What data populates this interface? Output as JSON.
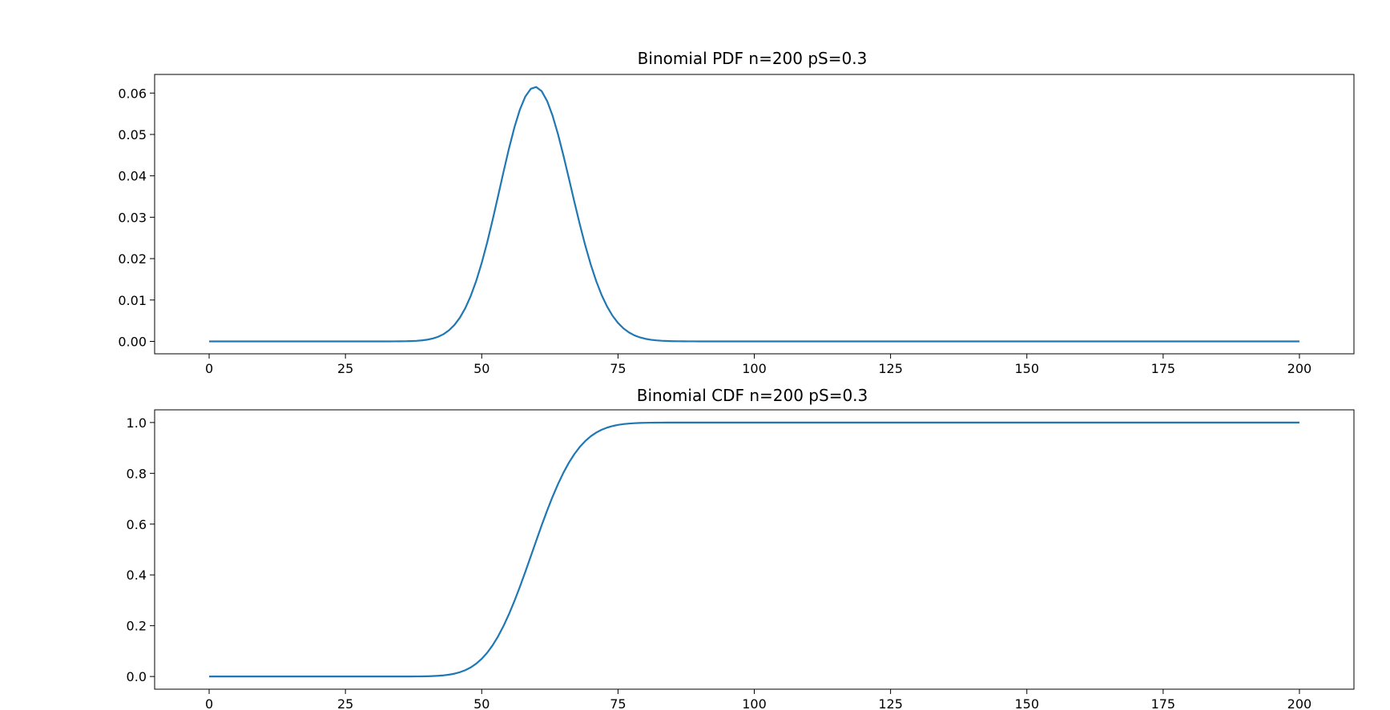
{
  "chart_data": [
    {
      "type": "line",
      "title": "Binomial PDF n=200 pS=0.3",
      "xlabel": "",
      "ylabel": "",
      "xlim": [
        -10,
        210
      ],
      "ylim": [
        -0.003,
        0.0645
      ],
      "xticks": [
        0,
        25,
        50,
        75,
        100,
        125,
        150,
        175,
        200
      ],
      "xtick_labels": [
        "0",
        "25",
        "50",
        "75",
        "100",
        "125",
        "150",
        "175",
        "200"
      ],
      "yticks": [
        0.0,
        0.01,
        0.02,
        0.03,
        0.04,
        0.05,
        0.06
      ],
      "ytick_labels": [
        "0.00",
        "0.01",
        "0.02",
        "0.03",
        "0.04",
        "0.05",
        "0.06"
      ],
      "grid": false,
      "line_color": "#1f77b4",
      "distribution": {
        "n": 200,
        "p": 0.3,
        "kind": "pdf"
      },
      "series": [
        {
          "x_range": [
            0,
            200
          ],
          "step": 1
        }
      ]
    },
    {
      "type": "line",
      "title": "Binomial CDF n=200 pS=0.3",
      "xlabel": "",
      "ylabel": "",
      "xlim": [
        -10,
        210
      ],
      "ylim": [
        -0.05,
        1.05
      ],
      "xticks": [
        0,
        25,
        50,
        75,
        100,
        125,
        150,
        175,
        200
      ],
      "xtick_labels": [
        "0",
        "25",
        "50",
        "75",
        "100",
        "125",
        "150",
        "175",
        "200"
      ],
      "yticks": [
        0.0,
        0.2,
        0.4,
        0.6,
        0.8,
        1.0
      ],
      "ytick_labels": [
        "0.0",
        "0.2",
        "0.4",
        "0.6",
        "0.8",
        "1.0"
      ],
      "grid": false,
      "line_color": "#1f77b4",
      "distribution": {
        "n": 200,
        "p": 0.3,
        "kind": "cdf"
      },
      "series": [
        {
          "x_range": [
            0,
            200
          ],
          "step": 1
        }
      ]
    }
  ]
}
